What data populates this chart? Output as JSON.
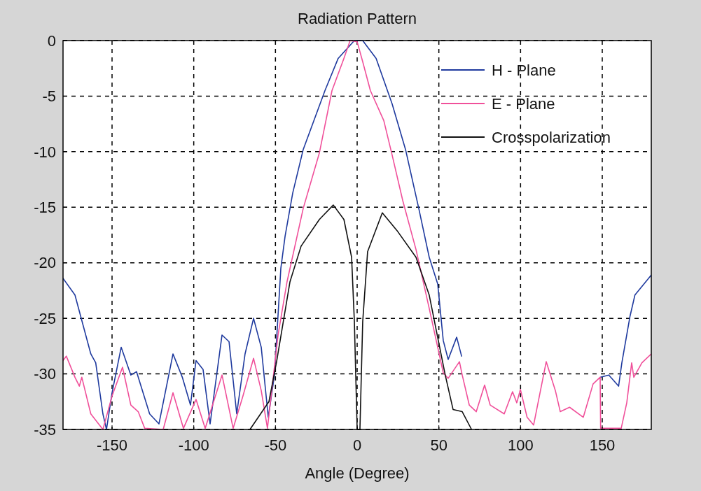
{
  "chart_data": {
    "type": "line",
    "title": "Radiation Pattern",
    "xlabel": "Angle (Degree)",
    "xlim": [
      -180,
      180
    ],
    "ylim": [
      -35,
      0
    ],
    "xticks": [
      -150,
      -100,
      -50,
      0,
      50,
      100,
      150
    ],
    "yticks": [
      0,
      -5,
      -10,
      -15,
      -20,
      -25,
      -30,
      -35
    ],
    "grid": true,
    "legend": "top right",
    "marker": "none",
    "line_style": "solid",
    "series": [
      {
        "name": "H - Plane",
        "color": "#1f3a9e",
        "x": [
          -180,
          -172.7,
          -168.5,
          -163,
          -160,
          -155.6,
          -153.4,
          -150,
          -144.4,
          -138.5,
          -135,
          -127,
          -121.3,
          -112.7,
          -107,
          -102,
          -98.6,
          -94.3,
          -90,
          -82.7,
          -78.4,
          -73.7,
          -68.6,
          -63.4,
          -58.7,
          -54.4,
          -50.6,
          -46.7,
          -44.1,
          -39.4,
          -33,
          -19.7,
          -11.6,
          -1.7,
          3.4,
          11.6,
          21.4,
          29.6,
          37.7,
          44.1,
          49.3,
          52.7,
          55.7,
          60.9,
          63.9,
          66,
          148,
          149,
          154,
          160,
          162,
          167,
          170,
          180
        ],
        "values": [
          -21.4,
          -22.9,
          -25.2,
          -28.2,
          -29,
          -33.6,
          -35,
          -31.7,
          -27.6,
          -30.1,
          -29.8,
          -33.6,
          -34.5,
          -28.2,
          -30.3,
          -32.8,
          -28.8,
          -29.6,
          -34.5,
          -26.5,
          -27.1,
          -33.6,
          -28.2,
          -25,
          -27.6,
          -33.9,
          -30.1,
          -20.5,
          -17.6,
          -13.7,
          -9.8,
          -4.5,
          -1.6,
          0,
          0,
          -1.6,
          -5.7,
          -9.8,
          -15.1,
          -19.5,
          -21.9,
          -27,
          -28.7,
          -26.7,
          -28.4,
          null,
          null,
          -30.3,
          -30.1,
          -31.1,
          -29,
          -24.8,
          -22.9,
          -21.1
        ]
      },
      {
        "name": "E - Plane",
        "color": "#f0509a",
        "x": [
          -180,
          -178,
          -172.7,
          -170,
          -168.5,
          -163,
          -155.6,
          -150,
          -143.6,
          -138.5,
          -134,
          -130,
          -118.7,
          -112.7,
          -106.3,
          -98.6,
          -93,
          -82.7,
          -75.9,
          -69.9,
          -63.4,
          -58.7,
          -54.9,
          -48.4,
          -42.9,
          -33,
          -23.1,
          -15.4,
          -8.1,
          -4.3,
          0,
          3.4,
          8.1,
          16.3,
          21.4,
          27.9,
          36,
          44.1,
          52.7,
          55.7,
          62.6,
          64.3,
          68.6,
          72.9,
          78,
          81.4,
          90,
          95.1,
          97.7,
          99.9,
          104,
          108,
          115.7,
          121.3,
          124.3,
          130,
          138.4,
          144.4,
          148.7,
          149,
          161.6,
          165,
          168,
          169.3,
          174.3,
          180
        ],
        "values": [
          -28.8,
          -28.4,
          -30.3,
          -31.1,
          -30.3,
          -33.6,
          -35,
          -32,
          -29.4,
          -32.8,
          -33.4,
          -34.9,
          -35,
          -31.7,
          -34.9,
          -32.3,
          -34.9,
          -30.1,
          -34.9,
          -32,
          -28.6,
          -31.5,
          -34.9,
          -26.5,
          -21.7,
          -15.1,
          -10.1,
          -4.5,
          -1.6,
          0,
          -0.1,
          -1.9,
          -4.5,
          -7.2,
          -10.3,
          -14.4,
          -18.8,
          -24.1,
          -29.9,
          -30.4,
          -28.9,
          -30.1,
          -32.8,
          -33.4,
          -31,
          -32.8,
          -33.6,
          -31.6,
          -32.6,
          -31.4,
          -33.9,
          -34.6,
          -28.9,
          -31.5,
          -33.4,
          -33,
          -33.9,
          -30.9,
          -30.3,
          -34.9,
          -34.9,
          -32.6,
          -29,
          -30.3,
          -29,
          -28.2
        ]
      },
      {
        "name": "Crosspolarization",
        "color": "#111111",
        "x": [
          -65.6,
          -54,
          -49.3,
          -41.1,
          -34.3,
          -23.1,
          -14.6,
          -8.1,
          -3.4,
          -1.7,
          0,
          1.7,
          3.4,
          6.4,
          15.4,
          24.4,
          36,
          44.1,
          53.9,
          58.7,
          64.3,
          70
        ],
        "values": [
          -35,
          -32.5,
          -28.9,
          -21.7,
          -18.5,
          -16.1,
          -14.8,
          -16.1,
          -19.5,
          -25.3,
          -35,
          -35,
          -25.3,
          -19,
          -15.5,
          -17.1,
          -19.5,
          -22.9,
          -30.1,
          -33.2,
          -33.4,
          -35
        ]
      }
    ]
  }
}
